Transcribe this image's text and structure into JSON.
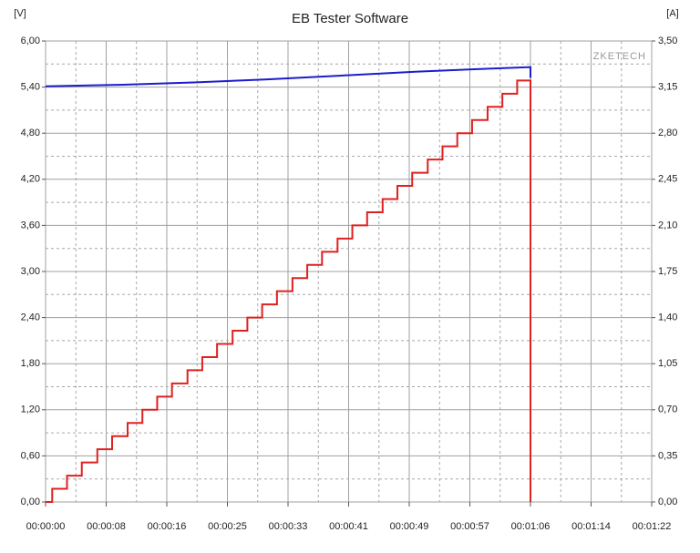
{
  "chart_data": {
    "type": "line",
    "title": "EB Tester Software",
    "ylabel": "[V]",
    "y2label": "[A]",
    "watermark": "ZKETECH",
    "xlim": [
      0,
      82
    ],
    "ylim": [
      0,
      6
    ],
    "y2lim": [
      0,
      3.5
    ],
    "grid": true,
    "xticks": [
      {
        "value": 0,
        "label": "00:00:00"
      },
      {
        "value": 8.2,
        "label": "00:00:08"
      },
      {
        "value": 16.4,
        "label": "00:00:16"
      },
      {
        "value": 24.6,
        "label": "00:00:25"
      },
      {
        "value": 32.8,
        "label": "00:00:33"
      },
      {
        "value": 41,
        "label": "00:00:41"
      },
      {
        "value": 49.2,
        "label": "00:00:49"
      },
      {
        "value": 57.4,
        "label": "00:00:57"
      },
      {
        "value": 65.6,
        "label": "00:01:06"
      },
      {
        "value": 73.8,
        "label": "00:01:14"
      },
      {
        "value": 82,
        "label": "00:01:22"
      }
    ],
    "yticks": [
      {
        "value": 0,
        "label": "0,00"
      },
      {
        "value": 0.6,
        "label": "0,60"
      },
      {
        "value": 1.2,
        "label": "1,20"
      },
      {
        "value": 1.8,
        "label": "1,80"
      },
      {
        "value": 2.4,
        "label": "2,40"
      },
      {
        "value": 3,
        "label": "3,00"
      },
      {
        "value": 3.6,
        "label": "3,60"
      },
      {
        "value": 4.2,
        "label": "4,20"
      },
      {
        "value": 4.8,
        "label": "4,80"
      },
      {
        "value": 5.4,
        "label": "5,40"
      },
      {
        "value": 6,
        "label": "6,00"
      }
    ],
    "y2ticks": [
      {
        "value": 0,
        "label": "0,00"
      },
      {
        "value": 0.35,
        "label": "0,35"
      },
      {
        "value": 0.7,
        "label": "0,70"
      },
      {
        "value": 1.05,
        "label": "1,05"
      },
      {
        "value": 1.4,
        "label": "1,40"
      },
      {
        "value": 1.75,
        "label": "1,75"
      },
      {
        "value": 2.1,
        "label": "2,10"
      },
      {
        "value": 2.45,
        "label": "2,45"
      },
      {
        "value": 2.8,
        "label": "2,80"
      },
      {
        "value": 3.15,
        "label": "3,15"
      },
      {
        "value": 3.5,
        "label": "3,50"
      }
    ],
    "series": [
      {
        "color": "#1c1ccc",
        "x": [
          0,
          10,
          20,
          30,
          40,
          50,
          60,
          65.6,
          65.6
        ],
        "values": [
          5.41,
          5.43,
          5.46,
          5.5,
          5.55,
          5.6,
          5.64,
          5.66,
          5.52
        ]
      },
      {
        "color": "#e02020",
        "axis": "y2",
        "step": "after",
        "x": [
          0,
          0.9,
          2.9,
          4.9,
          7.0,
          9.0,
          11.1,
          13.1,
          15.1,
          17.1,
          19.2,
          21.2,
          23.2,
          25.3,
          27.3,
          29.3,
          31.3,
          33.4,
          35.4,
          37.4,
          39.5,
          41.5,
          43.5,
          45.6,
          47.6,
          49.6,
          51.7,
          53.7,
          55.7,
          57.7,
          59.8,
          61.8,
          63.8,
          65.6
        ],
        "values": [
          0,
          0.1,
          0.2,
          0.3,
          0.4,
          0.5,
          0.6,
          0.7,
          0.8,
          0.9,
          1.0,
          1.1,
          1.2,
          1.3,
          1.4,
          1.5,
          1.6,
          1.7,
          1.8,
          1.9,
          2.0,
          2.1,
          2.2,
          2.3,
          2.4,
          2.5,
          2.6,
          2.7,
          2.8,
          2.9,
          3.0,
          3.1,
          3.2,
          0
        ]
      }
    ]
  }
}
